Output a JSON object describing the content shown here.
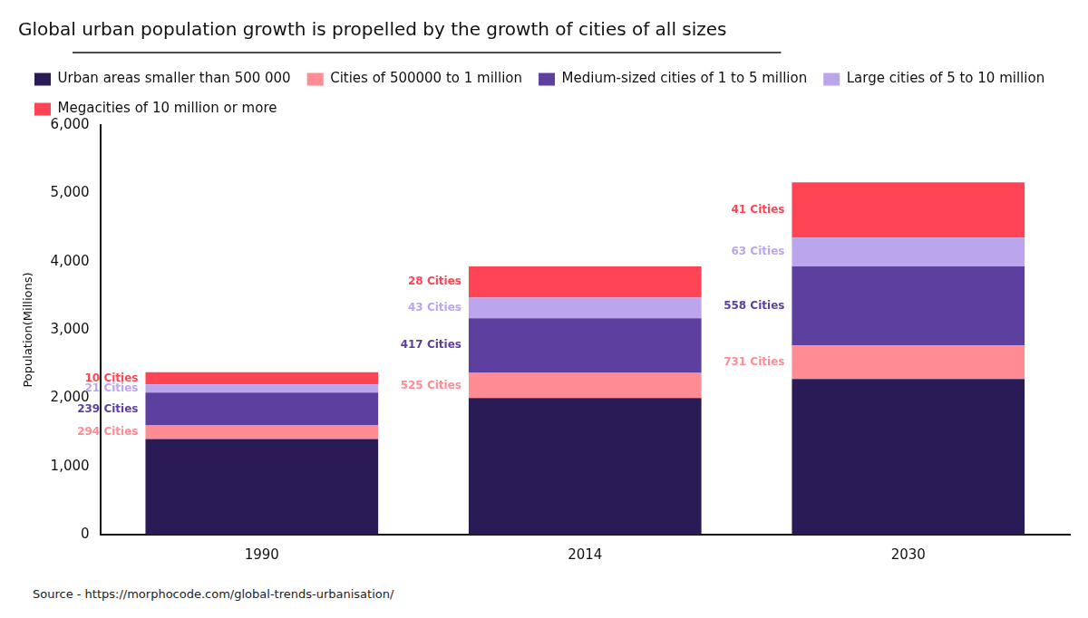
{
  "chart_data": {
    "type": "bar",
    "title": "Global urban population growth is propelled by the growth of cities of all sizes",
    "y_label": "Population(Millions)",
    "source": "Source - https://morphocode.com/global-trends-urbanisation/",
    "categories": [
      "1990",
      "2014",
      "2030"
    ],
    "stacked": true,
    "grid": false,
    "legend": "top",
    "ylim": [
      0,
      6000
    ],
    "yticks": [
      0,
      1000,
      2000,
      3000,
      4000,
      5000,
      6000
    ],
    "series": [
      {
        "name": "Urban areas smaller than 500 000",
        "color": "#2a1a55",
        "values": [
          1400,
          2000,
          2280
        ]
      },
      {
        "name": "Cities of 500000 to 1 million",
        "color": "#ff8c94",
        "values": [
          200,
          370,
          490
        ],
        "annotations": [
          "294 Cities",
          "525 Cities",
          "731 Cities"
        ]
      },
      {
        "name": "Medium-sized cities of 1 to 5 million",
        "color": "#5c3f9e",
        "values": [
          480,
          800,
          1160
        ],
        "annotations": [
          "239 Cities",
          "417 Cities",
          "558 Cities"
        ]
      },
      {
        "name": "Large cities of 5 to 10 million",
        "color": "#bba5ec",
        "values": [
          120,
          300,
          420
        ],
        "annotations": [
          "21 Cities",
          "43 Cities",
          "63 Cities"
        ]
      },
      {
        "name": "Megacities of 10 million or more",
        "color": "#ff4455",
        "values": [
          180,
          460,
          810
        ],
        "annotations": [
          "10 Cities",
          "28 Cities",
          "41 Cities"
        ]
      }
    ]
  }
}
